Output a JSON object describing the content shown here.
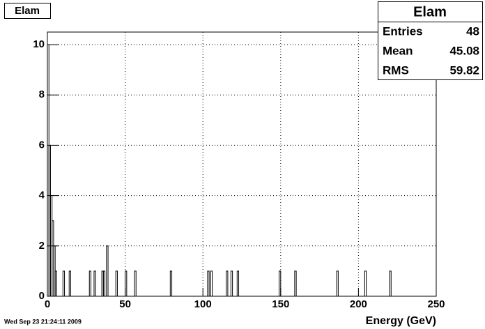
{
  "chart_data": {
    "type": "histogram",
    "title": "Elam",
    "x_label": "Energy (GeV)",
    "timestamp": "Wed Sep 23 21:24:11 2009",
    "bins": [
      0,
      1,
      2,
      3,
      4,
      5,
      6,
      10,
      11,
      14,
      15,
      27,
      28,
      30,
      31,
      35,
      36,
      37,
      38,
      39,
      44,
      45,
      50,
      51,
      56,
      57,
      79,
      80,
      103,
      104,
      105,
      106,
      115,
      116,
      118,
      119,
      122,
      123,
      149,
      150,
      159,
      160,
      186,
      187,
      204,
      205,
      220,
      221,
      250
    ],
    "values": [
      10,
      6,
      4,
      3,
      2,
      1,
      0,
      1,
      0,
      1,
      0,
      1,
      0,
      1,
      0,
      1,
      1,
      0,
      2,
      0,
      1,
      0,
      1,
      0,
      1,
      0,
      1,
      0,
      1,
      0,
      1,
      0,
      1,
      0,
      1,
      0,
      1,
      0,
      1,
      0,
      1,
      0,
      1,
      0,
      1,
      0,
      1,
      0
    ],
    "color": "#000000",
    "xlim": [
      0,
      250
    ],
    "xticks": [
      0,
      50,
      100,
      150,
      200,
      250
    ],
    "ylim": [
      0,
      10.5
    ],
    "yticks": [
      0,
      2,
      4,
      6,
      8,
      10
    ],
    "grid": true,
    "stats": {
      "title": "Elam",
      "rows": [
        {
          "label": "Entries",
          "value": 48
        },
        {
          "label": "Mean",
          "value": 45.08
        },
        {
          "label": "RMS",
          "value": 59.82
        }
      ]
    }
  }
}
